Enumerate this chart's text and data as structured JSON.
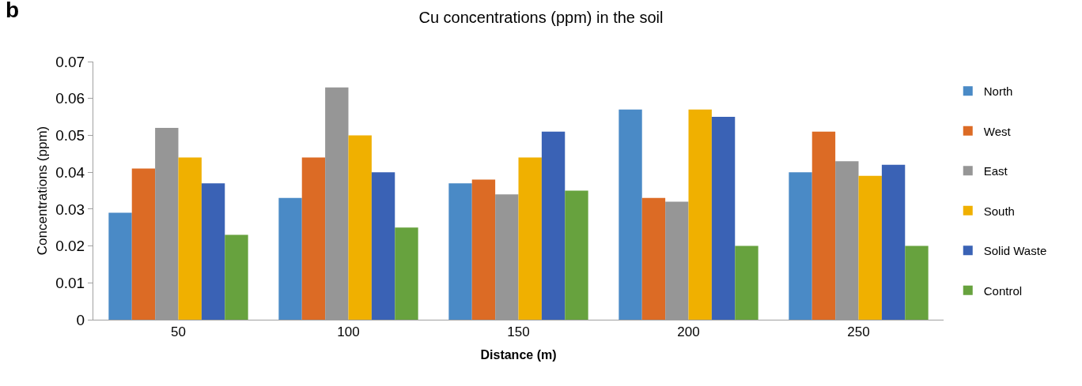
{
  "chart_data": {
    "type": "bar",
    "title": "Cu concentrations (ppm) in the soil",
    "xlabel": "Distance (m)",
    "ylabel": "Concentrations (ppm)",
    "annotations": [
      "b"
    ],
    "categories": [
      "50",
      "100",
      "150",
      "200",
      "250"
    ],
    "series": [
      {
        "name": "North",
        "color": "#4a8ac6",
        "values": [
          0.029,
          0.033,
          0.037,
          0.057,
          0.04
        ]
      },
      {
        "name": "West",
        "color": "#dc6b25",
        "values": [
          0.041,
          0.044,
          0.038,
          0.033,
          0.051
        ]
      },
      {
        "name": "East",
        "color": "#969696",
        "values": [
          0.052,
          0.063,
          0.034,
          0.032,
          0.043
        ]
      },
      {
        "name": "South",
        "color": "#f0b000",
        "values": [
          0.044,
          0.05,
          0.044,
          0.057,
          0.039
        ]
      },
      {
        "name": "Solid Waste",
        "color": "#3a62b5",
        "values": [
          0.037,
          0.04,
          0.051,
          0.055,
          0.042
        ]
      },
      {
        "name": "Control",
        "color": "#67a23e",
        "values": [
          0.023,
          0.025,
          0.035,
          0.02,
          0.02
        ]
      }
    ],
    "ylim": [
      0,
      0.07
    ],
    "yticks": [
      0,
      0.01,
      0.02,
      0.03,
      0.04,
      0.05,
      0.06,
      0.07
    ],
    "legend": "right"
  }
}
